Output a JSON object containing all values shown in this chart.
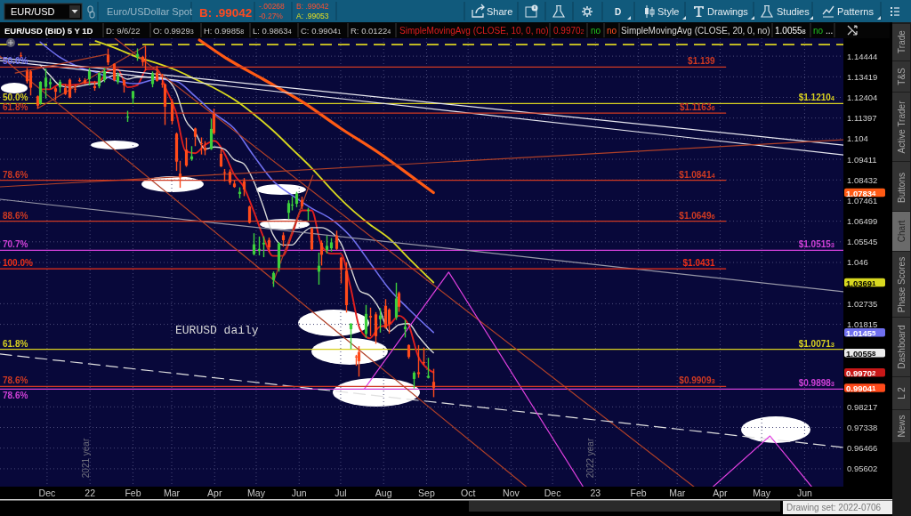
{
  "chart_data": {
    "type": "candlestick",
    "title": "EUR/USD (BID) 5 Y 1D",
    "x": [
      "2021-11-12",
      "2021-11-16",
      "2021-11-19",
      "2021-11-24",
      "2021-11-26",
      "2021-11-30",
      "2021-12-03",
      "2021-12-07",
      "2021-12-10",
      "2021-12-14",
      "2021-12-17",
      "2021-12-21",
      "2021-12-24",
      "2021-12-28",
      "2021-12-31",
      "2022-01-04",
      "2022-01-07",
      "2022-01-11",
      "2022-01-14",
      "2022-01-18",
      "2022-01-21",
      "2022-01-25",
      "2022-01-28",
      "2022-02-01",
      "2022-02-04",
      "2022-02-08",
      "2022-02-10",
      "2022-02-15",
      "2022-02-18",
      "2022-02-22",
      "2022-02-24",
      "2022-03-01",
      "2022-03-04",
      "2022-03-07",
      "2022-03-11",
      "2022-03-15",
      "2022-03-18",
      "2022-03-22",
      "2022-03-25",
      "2022-03-29",
      "2022-03-31",
      "2022-04-05",
      "2022-04-08",
      "2022-04-12",
      "2022-04-15",
      "2022-04-19",
      "2022-04-22",
      "2022-04-26",
      "2022-04-29",
      "2022-05-03",
      "2022-05-06",
      "2022-05-10",
      "2022-05-13",
      "2022-05-17",
      "2022-05-20",
      "2022-05-24",
      "2022-05-27",
      "2022-05-30",
      "2022-06-03",
      "2022-06-07",
      "2022-06-10",
      "2022-06-15",
      "2022-06-17",
      "2022-06-21",
      "2022-06-24",
      "2022-06-28",
      "2022-07-01",
      "2022-07-05",
      "2022-07-08",
      "2022-07-12",
      "2022-07-14",
      "2022-07-19",
      "2022-07-22",
      "2022-07-26",
      "2022-07-29",
      "2022-08-02",
      "2022-08-05",
      "2022-08-10",
      "2022-08-12",
      "2022-08-16",
      "2022-08-19",
      "2022-08-23",
      "2022-08-26",
      "2022-08-30",
      "2022-09-02",
      "2022-09-06"
    ],
    "ohlc": [
      [
        1.1448,
        1.1464,
        1.1433,
        1.1445
      ],
      [
        1.1369,
        1.1385,
        1.1309,
        1.132
      ],
      [
        1.1369,
        1.1374,
        1.125,
        1.1288
      ],
      [
        1.1246,
        1.125,
        1.1186,
        1.12
      ],
      [
        1.1211,
        1.132,
        1.1205,
        1.1317
      ],
      [
        1.1292,
        1.1383,
        1.1235,
        1.1337
      ],
      [
        1.1305,
        1.1334,
        1.1283,
        1.1316
      ],
      [
        1.1285,
        1.129,
        1.1227,
        1.1268
      ],
      [
        1.129,
        1.1327,
        1.1263,
        1.1317
      ],
      [
        1.1286,
        1.1306,
        1.1252,
        1.1257
      ],
      [
        1.1327,
        1.1333,
        1.1236,
        1.124
      ],
      [
        1.1283,
        1.1304,
        1.1263,
        1.1282
      ],
      [
        1.1325,
        1.1336,
        1.1316,
        1.132
      ],
      [
        1.1325,
        1.1335,
        1.1305,
        1.1311
      ],
      [
        1.133,
        1.1385,
        1.13,
        1.137
      ],
      [
        1.1296,
        1.1322,
        1.1273,
        1.1286
      ],
      [
        1.1296,
        1.1365,
        1.1285,
        1.136
      ],
      [
        1.1326,
        1.1385,
        1.1315,
        1.1369
      ],
      [
        1.1452,
        1.1482,
        1.14,
        1.1413
      ],
      [
        1.1406,
        1.1409,
        1.132,
        1.1325
      ],
      [
        1.1316,
        1.1363,
        1.1306,
        1.1345
      ],
      [
        1.1326,
        1.1328,
        1.1264,
        1.13
      ],
      [
        1.1143,
        1.1175,
        1.1121,
        1.1147
      ],
      [
        1.1236,
        1.1273,
        1.1208,
        1.1271
      ],
      [
        1.1441,
        1.1483,
        1.1421,
        1.1455
      ],
      [
        1.1441,
        1.1446,
        1.1395,
        1.1415
      ],
      [
        1.1425,
        1.1495,
        1.1374,
        1.1424
      ],
      [
        1.1306,
        1.1368,
        1.129,
        1.1358
      ],
      [
        1.1363,
        1.1396,
        1.1318,
        1.1322
      ],
      [
        1.1309,
        1.1357,
        1.1288,
        1.1308
      ],
      [
        1.1305,
        1.1309,
        1.1106,
        1.1195
      ],
      [
        1.1219,
        1.1232,
        1.1109,
        1.1125
      ],
      [
        1.1064,
        1.107,
        1.0886,
        1.093
      ],
      [
        1.0873,
        1.0934,
        1.0806,
        1.0855
      ],
      [
        1.0987,
        1.1045,
        1.0905,
        1.0911
      ],
      [
        1.0942,
        1.1004,
        1.0934,
        1.0955
      ],
      [
        1.1089,
        1.1093,
        1.1004,
        1.1049
      ],
      [
        1.1018,
        1.1046,
        1.0964,
        1.1017
      ],
      [
        1.0997,
        1.1028,
        1.0961,
        1.0983
      ],
      [
        1.099,
        1.1137,
        1.0986,
        1.1087
      ],
      [
        1.116,
        1.1185,
        1.1061,
        1.1067
      ],
      [
        1.0967,
        1.0991,
        1.0904,
        1.0907
      ],
      [
        1.088,
        1.0895,
        1.0837,
        1.0877
      ],
      [
        1.0882,
        1.0893,
        1.082,
        1.083
      ],
      [
        1.0826,
        1.084,
        1.0806,
        1.081
      ],
      [
        1.0777,
        1.0808,
        1.0757,
        1.0787
      ],
      [
        1.0837,
        1.0852,
        1.0767,
        1.0798
      ],
      [
        1.0718,
        1.0722,
        1.0639,
        1.0643
      ],
      [
        1.0498,
        1.0594,
        1.0492,
        1.0543
      ],
      [
        1.0512,
        1.0579,
        1.0492,
        1.0522
      ],
      [
        1.0543,
        1.058,
        1.0484,
        1.055
      ],
      [
        1.0563,
        1.0574,
        1.0508,
        1.0529
      ],
      [
        1.038,
        1.0419,
        1.0349,
        1.0412
      ],
      [
        1.0435,
        1.0553,
        1.0418,
        1.0547
      ],
      [
        1.0585,
        1.0598,
        1.0532,
        1.0562
      ],
      [
        1.0689,
        1.0748,
        1.0659,
        1.0734
      ],
      [
        1.0724,
        1.0765,
        1.07,
        1.0727
      ],
      [
        1.0731,
        1.0787,
        1.0715,
        1.0778
      ],
      [
        1.0749,
        1.0764,
        1.0705,
        1.0719
      ],
      [
        1.0698,
        1.0712,
        1.0653,
        1.0703
      ],
      [
        1.0617,
        1.062,
        1.0514,
        1.052
      ],
      [
        1.0418,
        1.0505,
        1.0359,
        1.0445
      ],
      [
        1.055,
        1.0561,
        1.0446,
        1.0495
      ],
      [
        1.0516,
        1.0583,
        1.0501,
        1.0536
      ],
      [
        1.0525,
        1.0572,
        1.051,
        1.0552
      ],
      [
        1.0584,
        1.0606,
        1.0516,
        1.0522
      ],
      [
        1.0482,
        1.0486,
        1.0365,
        1.0427
      ],
      [
        1.0422,
        1.0461,
        1.0234,
        1.0267
      ],
      [
        1.016,
        1.0186,
        1.0072,
        1.0185
      ],
      [
        1.004,
        1.0047,
        0.9999,
        1.0036
      ],
      [
        1.0059,
        1.0085,
        0.9952,
        1.0019
      ],
      [
        1.0139,
        1.0268,
        1.0121,
        1.0228
      ],
      [
        1.0219,
        1.0256,
        1.0129,
        1.0212
      ],
      [
        1.0226,
        1.0236,
        1.0096,
        1.0129
      ],
      [
        1.0204,
        1.0254,
        1.0145,
        1.0221
      ],
      [
        1.0264,
        1.0294,
        1.0162,
        1.0166
      ],
      [
        1.0247,
        1.0253,
        1.0141,
        1.0183
      ],
      [
        1.0212,
        1.0368,
        1.0201,
        1.0297
      ],
      [
        1.0321,
        1.0328,
        1.0237,
        1.026
      ],
      [
        1.016,
        1.0201,
        1.0123,
        1.0171
      ],
      [
        1.009,
        1.0093,
        1.003,
        1.0038
      ],
      [
        0.9942,
        0.9975,
        0.9901,
        0.9969
      ],
      [
        0.9971,
        1.009,
        0.9947,
        0.9963
      ],
      [
        1.0015,
        1.0079,
        1.0003,
        1.0014
      ],
      [
        0.9947,
        1.0034,
        0.9944,
        0.9955
      ],
      [
        0.99293,
        0.99858,
        0.98634,
        0.99041
      ]
    ],
    "series": [
      {
        "type": "line",
        "name": "SimpleMovingAvg (CLOSE, 10, 0, no)",
        "color": "#e01e1e",
        "x": [
          "2021-11-26",
          "2021-12-03",
          "2021-12-10",
          "2021-12-17",
          "2021-12-24",
          "2021-12-31",
          "2022-01-07",
          "2022-01-14",
          "2022-01-21",
          "2022-01-28",
          "2022-02-04",
          "2022-02-11",
          "2022-02-18",
          "2022-02-25",
          "2022-03-04",
          "2022-03-11",
          "2022-03-18",
          "2022-03-25",
          "2022-04-01",
          "2022-04-08",
          "2022-04-15",
          "2022-04-22",
          "2022-04-29",
          "2022-05-06",
          "2022-05-13",
          "2022-05-20",
          "2022-05-27",
          "2022-06-03",
          "2022-06-10",
          "2022-06-17",
          "2022-06-24",
          "2022-07-01",
          "2022-07-08",
          "2022-07-15",
          "2022-07-22",
          "2022-07-29",
          "2022-08-05",
          "2022-08-12",
          "2022-08-19",
          "2022-08-26",
          "2022-09-02",
          "2022-09-06"
        ],
        "values": [
          1.128,
          1.128,
          1.1305,
          1.13,
          1.1305,
          1.1315,
          1.1315,
          1.137,
          1.138,
          1.129,
          1.13,
          1.138,
          1.138,
          1.128,
          1.117,
          1.098,
          1.097,
          1.101,
          1.103,
          1.097,
          1.087,
          1.081,
          1.07,
          1.058,
          1.049,
          1.049,
          1.059,
          1.07,
          1.07,
          1.054,
          1.05,
          1.05,
          1.035,
          1.016,
          1.012,
          1.017,
          1.018,
          1.022,
          1.018,
          1.004,
          0.9985,
          0.99702
        ]
      },
      {
        "type": "line",
        "name": "SimpleMovingAvg (CLOSE, 20, 0, no)",
        "color": "#d8d8d8",
        "x": [
          "2021-11-26",
          "2021-12-03",
          "2021-12-10",
          "2021-12-17",
          "2021-12-24",
          "2021-12-31",
          "2022-01-07",
          "2022-01-14",
          "2022-01-21",
          "2022-01-28",
          "2022-02-04",
          "2022-02-11",
          "2022-02-18",
          "2022-02-25",
          "2022-03-04",
          "2022-03-11",
          "2022-03-18",
          "2022-03-25",
          "2022-04-01",
          "2022-04-08",
          "2022-04-15",
          "2022-04-22",
          "2022-04-29",
          "2022-05-06",
          "2022-05-13",
          "2022-05-20",
          "2022-05-27",
          "2022-06-03",
          "2022-06-10",
          "2022-06-17",
          "2022-06-24",
          "2022-07-01",
          "2022-07-08",
          "2022-07-15",
          "2022-07-22",
          "2022-07-29",
          "2022-08-05",
          "2022-08-12",
          "2022-08-19",
          "2022-08-26",
          "2022-09-02",
          "2022-09-06"
        ],
        "values": [
          1.14,
          1.135,
          1.13,
          1.129,
          1.1295,
          1.1305,
          1.131,
          1.134,
          1.135,
          1.133,
          1.134,
          1.134,
          1.134,
          1.133,
          1.127,
          1.113,
          1.107,
          1.099,
          1.1,
          1.099,
          1.094,
          1.092,
          1.084,
          1.072,
          1.059,
          1.054,
          1.054,
          1.059,
          1.062,
          1.062,
          1.06,
          1.055,
          1.044,
          1.033,
          1.031,
          1.025,
          1.015,
          1.018,
          1.0185,
          1.013,
          1.008,
          1.00558
        ]
      },
      {
        "type": "line",
        "color": "#7070f0",
        "x": [
          "2021-11-26",
          "2021-12-10",
          "2021-12-24",
          "2022-01-07",
          "2022-01-21",
          "2022-02-04",
          "2022-02-18",
          "2022-03-04",
          "2022-03-18",
          "2022-04-01",
          "2022-04-15",
          "2022-04-29",
          "2022-05-13",
          "2022-05-27",
          "2022-06-10",
          "2022-06-24",
          "2022-07-08",
          "2022-07-22",
          "2022-08-05",
          "2022-08-19",
          "2022-09-06"
        ],
        "values": [
          1.1515,
          1.144,
          1.139,
          1.136,
          1.132,
          1.1308,
          1.133,
          1.132,
          1.1245,
          1.116,
          1.109,
          1.096,
          1.084,
          1.077,
          1.071,
          1.066,
          1.058,
          1.046,
          1.034,
          1.025,
          1.01455
        ]
      },
      {
        "type": "line",
        "color": "#d8d820",
        "x": [
          "2022-01-05",
          "2022-01-21",
          "2022-02-04",
          "2022-02-18",
          "2022-03-04",
          "2022-03-18",
          "2022-04-01",
          "2022-04-15",
          "2022-04-29",
          "2022-05-13",
          "2022-05-27",
          "2022-06-10",
          "2022-06-24",
          "2022-07-08",
          "2022-07-22",
          "2022-08-05",
          "2022-08-19",
          "2022-09-06"
        ],
        "values": [
          1.152,
          1.148,
          1.144,
          1.141,
          1.1375,
          1.133,
          1.1285,
          1.123,
          1.116,
          1.108,
          1.099,
          1.09,
          1.08,
          1.071,
          1.0635,
          1.057,
          1.048,
          1.03691
        ]
      },
      {
        "type": "line",
        "color": "#ff5a14",
        "x": [
          "2022-03-21",
          "2022-04-08",
          "2022-05-06",
          "2022-06-03",
          "2022-07-01",
          "2022-07-29",
          "2022-08-19",
          "2022-09-06"
        ],
        "values": [
          1.1525,
          1.144,
          1.133,
          1.122,
          1.109,
          1.097,
          1.087,
          1.07834
        ]
      },
      {
        "type": "line",
        "color": "#e8e8f0",
        "x": [
          "2021-10-28",
          "2023-06-29"
        ],
        "values": [
          1.14356,
          1.10093
        ]
      },
      {
        "type": "line",
        "color": "#e8e8f0",
        "x": [
          "2021-10-28",
          "2023-06-29"
        ],
        "values": [
          1.14223,
          1.09624
        ]
      },
      {
        "type": "line",
        "color": "#9898a8",
        "x": [
          "2021-10-28",
          "2023-06-29"
        ],
        "values": [
          1.0752,
          1.03271
        ]
      },
      {
        "type": "line",
        "color": "#b04028",
        "x": [
          "2021-10-28",
          "2023-06-29"
        ],
        "values": [
          1.08105,
          1.1035
        ]
      },
      {
        "type": "line",
        "color": "#b04028",
        "x": [
          "2021-10-28",
          "2022-11-12"
        ],
        "values": [
          1.14444,
          0.9486
        ]
      },
      {
        "type": "line",
        "color": "#b04028",
        "x": [
          "2022-01-19",
          "2023-03-13"
        ],
        "values": [
          1.1534,
          0.9486
        ]
      },
      {
        "type": "line",
        "color": "#b04028",
        "x": [
          "2022-05-13",
          "2022-06-11"
        ],
        "values": [
          1.0366,
          1.0865
        ]
      },
      {
        "type": "line",
        "color": "#b04028",
        "x": [
          "2021-11-24",
          "2022-02-10"
        ],
        "values": [
          1.1186,
          1.1495
        ]
      },
      {
        "type": "line",
        "color": "#b04028",
        "x": [
          "2021-11-08",
          "2022-01-13"
        ],
        "values": [
          1.13605,
          1.14533
        ]
      },
      {
        "type": "line",
        "color": "#e0e0e0",
        "line_style": "dashed",
        "x": [
          "2021-10-28",
          "2023-06-29"
        ],
        "values": [
          1.00506,
          0.96497
        ]
      },
      {
        "type": "line",
        "color": "#e040e0",
        "x": [
          "2022-07-18",
          "2022-09-17",
          "2022-12-23"
        ],
        "values": [
          0.98983,
          1.0416,
          0.9486
        ]
      },
      {
        "type": "line",
        "color": "#e040e0",
        "x": [
          "2023-03-27",
          "2023-05-07",
          "2023-06-06"
        ],
        "values": [
          0.9486,
          0.9698,
          0.9486
        ]
      },
      {
        "type": "line",
        "color": "#d03a22",
        "x": [
          "2021-10-28",
          "2023-04-05"
        ],
        "values": [
          1.139,
          1.139
        ],
        "value_labels": [
          null,
          "$1.139"
        ]
      },
      {
        "type": "line",
        "color": "#d03a22",
        "x": [
          "2021-10-28",
          "2023-04-05"
        ],
        "values": [
          1.11636,
          1.11636
        ],
        "value_labels": [
          null,
          "$1.11636"
        ]
      },
      {
        "type": "line",
        "color": "#d03a22",
        "x": [
          "2021-10-28",
          "2023-04-05"
        ],
        "values": [
          1.08414,
          1.08414
        ],
        "value_labels": [
          null,
          "$1.08414"
        ]
      },
      {
        "type": "line",
        "color": "#d03a22",
        "x": [
          "2021-10-28",
          "2023-04-05"
        ],
        "values": [
          1.06496,
          1.06496
        ],
        "value_labels": [
          null,
          "$1.06496"
        ]
      },
      {
        "type": "line",
        "color": "#ee3018",
        "x": [
          "2021-10-28",
          "2023-04-05"
        ],
        "values": [
          1.0431,
          1.0431
        ],
        "value_labels": [
          null,
          "$1.0431"
        ]
      },
      {
        "type": "line",
        "color": "#d03a22",
        "x": [
          "2021-10-28",
          "2023-04-05"
        ],
        "values": [
          0.99093,
          0.99093
        ],
        "value_labels": [
          null,
          "$0.99093"
        ]
      }
    ],
    "xlim": [
      "2021-10-28",
      "2023-06-29"
    ],
    "xticks": [
      {
        "value": "2021-12-01",
        "label": "Dec"
      },
      {
        "value": "2022-01-01",
        "label": "22"
      },
      {
        "value": "2022-02-01",
        "label": "Feb"
      },
      {
        "value": "2022-03-01",
        "label": "Mar"
      },
      {
        "value": "2022-04-01",
        "label": "Apr"
      },
      {
        "value": "2022-05-01",
        "label": "May"
      },
      {
        "value": "2022-06-01",
        "label": "Jun"
      },
      {
        "value": "2022-07-01",
        "label": "Jul"
      },
      {
        "value": "2022-08-01",
        "label": "Aug"
      },
      {
        "value": "2022-09-01",
        "label": "Sep"
      },
      {
        "value": "2022-10-01",
        "label": "Oct"
      },
      {
        "value": "2022-11-01",
        "label": "Nov"
      },
      {
        "value": "2022-12-01",
        "label": "Dec"
      },
      {
        "value": "2023-01-01",
        "label": "23"
      },
      {
        "value": "2023-02-01",
        "label": "Feb"
      },
      {
        "value": "2023-03-01",
        "label": "Mar"
      },
      {
        "value": "2023-04-01",
        "label": "Apr"
      },
      {
        "value": "2023-05-01",
        "label": "May"
      },
      {
        "value": "2023-06-01",
        "label": "Jun"
      }
    ],
    "ylim": [
      0.9486,
      1.1534
    ],
    "yticks": [
      1.14444,
      1.13419,
      1.12404,
      1.11397,
      1.104,
      1.09411,
      1.08432,
      1.07461,
      1.06499,
      1.05545,
      1.046,
      1.02735,
      1.01815,
      0.98217,
      0.97338,
      0.96466,
      0.95602
    ],
    "log": "y",
    "grid": true,
    "legend": "top",
    "ref_lines": [
      {
        "axis": "y",
        "value": 1.15022,
        "color": "#d8d020",
        "line_style": "dashed"
      },
      {
        "axis": "y",
        "value": 1.12104,
        "label": "$1.12104",
        "color": "#d8d020"
      },
      {
        "axis": "y",
        "value": 1.05153,
        "label": "$1.05153",
        "color": "#d040d8"
      },
      {
        "axis": "y",
        "value": 1.00713,
        "label": "$1.00713",
        "color": "#d8d020"
      },
      {
        "axis": "y",
        "value": 0.98983,
        "label": "$0.98983",
        "color": "#d040d8"
      }
    ],
    "annotations": [
      "EUR/USD",
      "Euro/USDollar Spot",
      "B: .99042",
      "-.00268",
      "-0.27%",
      "B: .99042",
      "A: .99053",
      "Share",
      "D",
      "Style",
      "Drawings",
      "Studies",
      "Patterns",
      "D: 9/6/22",
      "O: 0.99293",
      "H: 0.99858",
      "L: 0.98634",
      "C: 0.99041",
      "R: 0.01224",
      "0.99702",
      "no",
      "no",
      "1.00558",
      "no",
      "...",
      "Trade",
      "T&S",
      "Active Trader",
      "Buttons",
      "Chart",
      "Phase Scores",
      "Dashboard",
      "L 2",
      "News",
      "Drawing set: 2022-0706",
      "EURUSD daily",
      "1.07834",
      "1.03691",
      "1.01455",
      "1.00558",
      "0.99702",
      "0.99041",
      "2021 year",
      "2022 year",
      {
        "text": "50.0%",
        "x": "2021-10-28",
        "y": 1.139
      },
      {
        "text": "50.0%",
        "x": "2021-10-28",
        "y": 1.12104
      },
      {
        "text": "61.8%",
        "x": "2021-10-28",
        "y": 1.11636
      },
      {
        "text": "78.6%",
        "x": "2021-10-28",
        "y": 1.08414
      },
      {
        "text": "88.6%",
        "x": "2021-10-28",
        "y": 1.06496
      },
      {
        "text": "70.7%",
        "x": "2021-10-28",
        "y": 1.05153
      },
      {
        "text": "100.0%",
        "x": "2021-10-28",
        "y": 1.0431
      },
      {
        "text": "61.8%",
        "x": "2021-10-28",
        "y": 1.00713
      },
      {
        "text": "78.6%",
        "x": "2021-10-28",
        "y": 0.99093
      },
      {
        "text": "78.6%",
        "x": "2021-10-28",
        "y": 0.98983
      }
    ]
  }
}
